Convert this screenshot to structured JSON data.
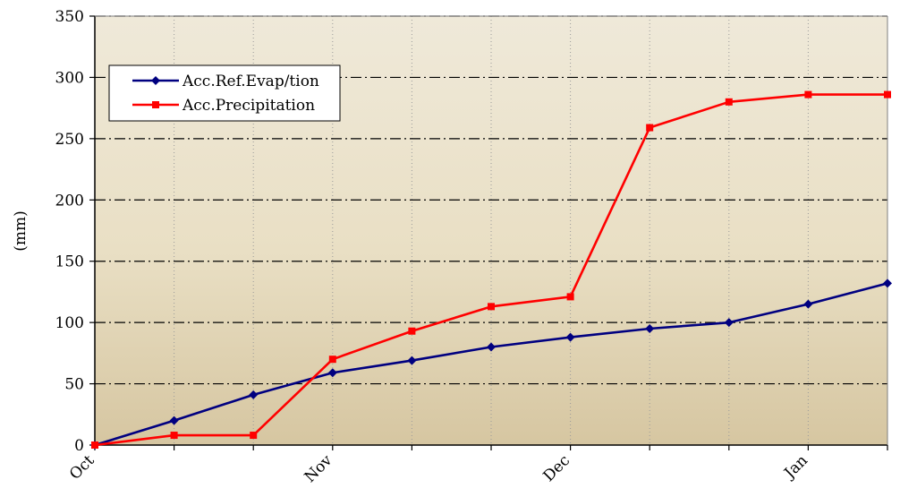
{
  "chart_data": {
    "type": "line",
    "title": "",
    "xlabel": "",
    "ylabel": "(mm)",
    "ylim": [
      0,
      350
    ],
    "yticks": [
      0,
      50,
      100,
      150,
      200,
      250,
      300,
      350
    ],
    "x_tick_labels": [
      {
        "label": "Oct",
        "x": 0
      },
      {
        "label": "Nov",
        "x": 3
      },
      {
        "label": "Dec",
        "x": 6
      },
      {
        "label": "Jan",
        "x": 9
      }
    ],
    "x": [
      0,
      1,
      2,
      3,
      4,
      5,
      6,
      7,
      8,
      9,
      10
    ],
    "grid": "dash-dot horizontal and dotted vertical",
    "legend_position": "upper-left",
    "series": [
      {
        "name": "Acc.Ref.Evap/tion",
        "color": "#000080",
        "marker": "diamond",
        "values": [
          0,
          20,
          41,
          59,
          69,
          80,
          88,
          95,
          100,
          115,
          132
        ]
      },
      {
        "name": "Acc.Precipitation",
        "color": "#ff0000",
        "marker": "square",
        "values": [
          0,
          8,
          8,
          70,
          93,
          113,
          121,
          259,
          280,
          286,
          286
        ]
      }
    ]
  }
}
